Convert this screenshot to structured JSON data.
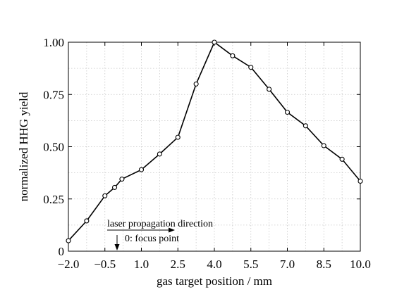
{
  "chart_data": {
    "type": "line",
    "xlabel": "gas target position / mm",
    "ylabel": "normalized HHG yield",
    "xlim": [
      -2.0,
      10.0
    ],
    "ylim": [
      0,
      1.0
    ],
    "x_ticks": [
      -2.0,
      -0.5,
      1.0,
      2.5,
      4.0,
      5.5,
      7.0,
      8.5,
      10.0
    ],
    "x_tick_labels": [
      "−2.0",
      "−0.5",
      "1.0",
      "2.5",
      "4.0",
      "5.5",
      "7.0",
      "8.5",
      "10.0"
    ],
    "y_ticks": [
      0,
      0.25,
      0.5,
      0.75,
      1.0
    ],
    "y_tick_labels": [
      "0",
      "0.25",
      "0.50",
      "0.75",
      "1.00"
    ],
    "grid": true,
    "series": [
      {
        "x": [
          -2.0,
          -1.25,
          -0.5,
          -0.1,
          0.2,
          1.0,
          1.75,
          2.5,
          3.25,
          4.0,
          4.75,
          5.5,
          6.25,
          7.0,
          7.75,
          8.5,
          9.25,
          10.0
        ],
        "y": [
          0.05,
          0.145,
          0.265,
          0.305,
          0.345,
          0.39,
          0.465,
          0.545,
          0.8,
          1.0,
          0.935,
          0.88,
          0.775,
          0.665,
          0.6,
          0.505,
          0.44,
          0.335
        ]
      }
    ],
    "annotations": [
      {
        "text": "laser propagation direction",
        "arrow": "right"
      },
      {
        "text": "0: focus point",
        "arrow": "down"
      }
    ]
  }
}
